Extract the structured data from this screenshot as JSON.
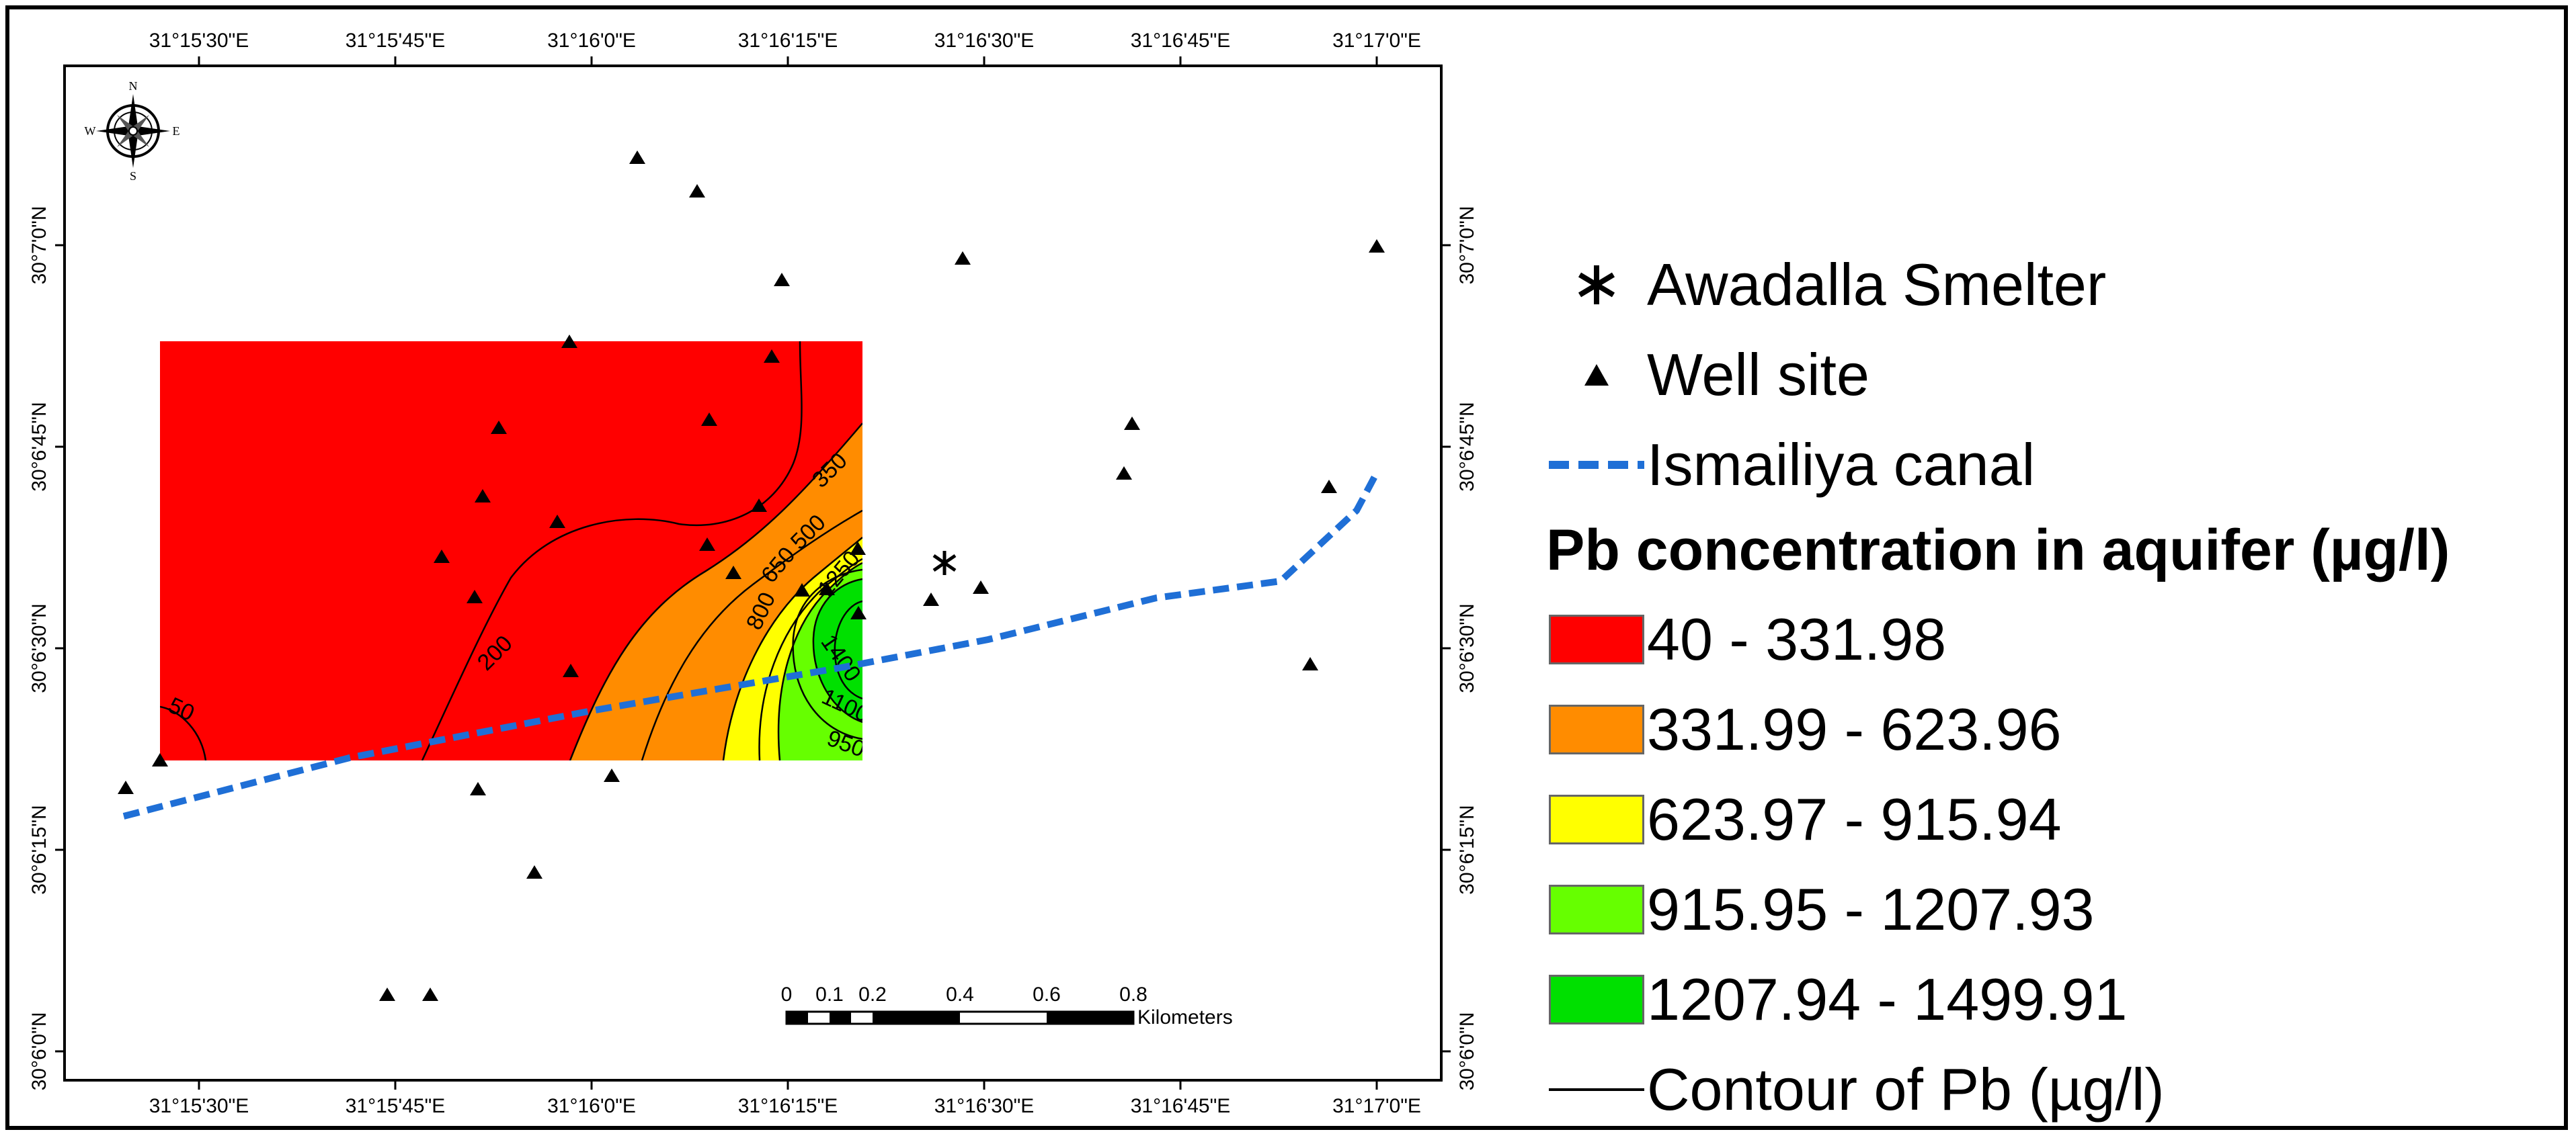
{
  "map": {
    "x_ticks": [
      "31°15'30\"E",
      "31°15'45\"E",
      "31°16'0\"E",
      "31°16'15\"E",
      "31°16'30\"E",
      "31°16'45\"E",
      "31°17'0\"E"
    ],
    "y_ticks": [
      "30°7'0\"N",
      "30°6'45\"N",
      "30°6'30\"N",
      "30°6'15\"N",
      "30°6'0\"N"
    ],
    "contour_labels": [
      "50",
      "200",
      "350",
      "500",
      "650",
      "800",
      "1250",
      "1400",
      "1100",
      "950"
    ],
    "compass": {
      "n": "N",
      "s": "S",
      "e": "E",
      "w": "W"
    },
    "scale_bar": {
      "ticks": [
        "0",
        "0.1",
        "0.2",
        "0.4",
        "0.6",
        "0.8"
      ],
      "unit": "Kilometers"
    },
    "zone_colors": [
      "#ff0000",
      "#ff8c00",
      "#ffff00",
      "#66ff00",
      "#00e000"
    ],
    "canal_color": "#1f6fd6"
  },
  "legend": {
    "smelter": "Awadalla Smelter",
    "well": "Well site",
    "canal": "Ismailiya canal",
    "title": "Pb concentration in aquifer (µg/l)",
    "classes": [
      {
        "label": "40 - 331.98",
        "color": "#ff0000"
      },
      {
        "label": "331.99 - 623.96",
        "color": "#ff8c00"
      },
      {
        "label": "623.97 - 915.94",
        "color": "#ffff00"
      },
      {
        "label": "915.95 - 1207.93",
        "color": "#66ff00"
      },
      {
        "label": "1207.94 - 1499.91",
        "color": "#00e000"
      }
    ],
    "contour": "Contour of Pb (µg/l)"
  }
}
